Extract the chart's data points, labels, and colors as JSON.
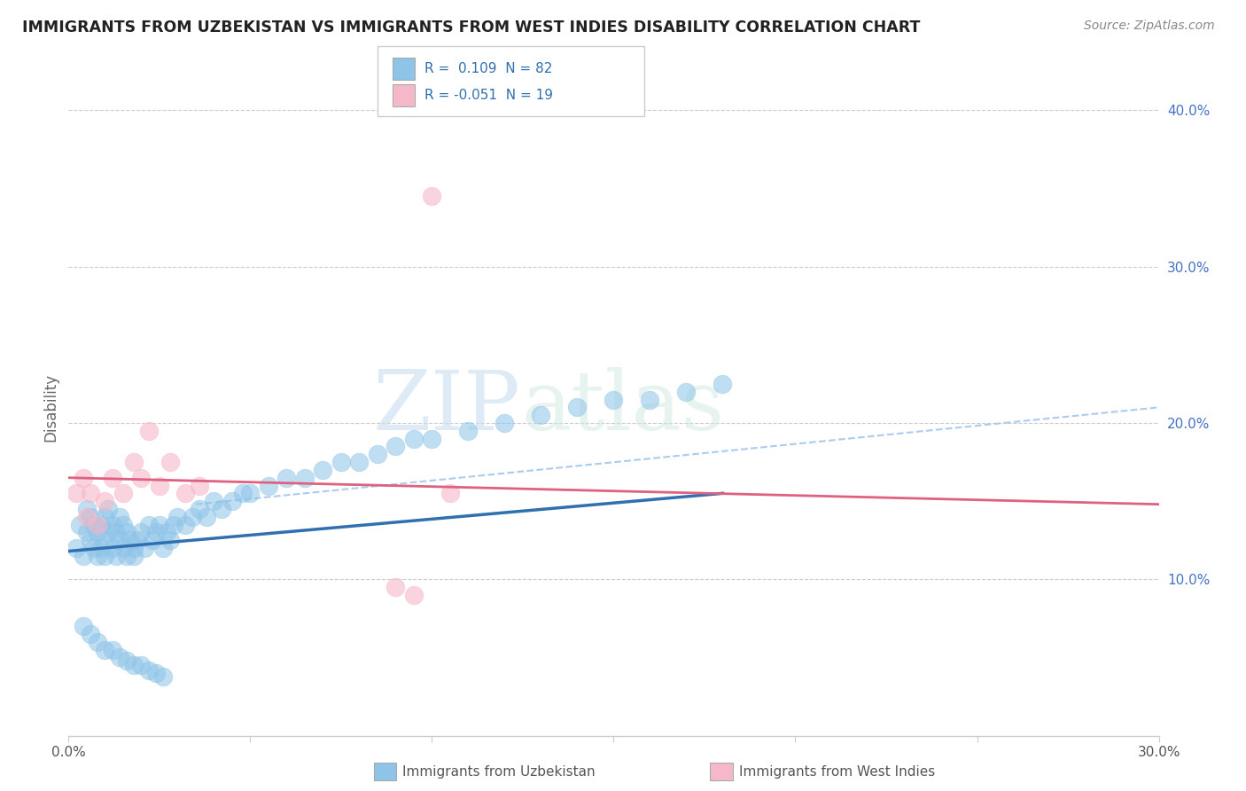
{
  "title": "IMMIGRANTS FROM UZBEKISTAN VS IMMIGRANTS FROM WEST INDIES DISABILITY CORRELATION CHART",
  "source": "Source: ZipAtlas.com",
  "ylabel": "Disability",
  "R1": 0.109,
  "N1": 82,
  "R2": -0.051,
  "N2": 19,
  "color_blue": "#8dc4e8",
  "color_pink": "#f5b8c8",
  "color_blue_line": "#3070b0",
  "color_pink_line": "#e06080",
  "color_dash": "#aaccee",
  "xlim": [
    0.0,
    0.3
  ],
  "ylim": [
    0.0,
    0.42
  ],
  "right_yticks": [
    0.1,
    0.2,
    0.3,
    0.4
  ],
  "right_yticklabels": [
    "10.0%",
    "20.0%",
    "30.0%",
    "40.0%"
  ],
  "legend_label_1": "Immigrants from Uzbekistan",
  "legend_label_2": "Immigrants from West Indies",
  "watermark_zip": "ZIP",
  "watermark_atlas": "atlas",
  "blue_dots_x": [
    0.002,
    0.003,
    0.004,
    0.005,
    0.005,
    0.006,
    0.006,
    0.007,
    0.007,
    0.008,
    0.008,
    0.009,
    0.009,
    0.01,
    0.01,
    0.01,
    0.011,
    0.011,
    0.012,
    0.012,
    0.013,
    0.013,
    0.014,
    0.014,
    0.015,
    0.015,
    0.016,
    0.016,
    0.017,
    0.018,
    0.018,
    0.019,
    0.02,
    0.021,
    0.022,
    0.023,
    0.024,
    0.025,
    0.026,
    0.027,
    0.028,
    0.029,
    0.03,
    0.032,
    0.034,
    0.036,
    0.038,
    0.04,
    0.042,
    0.045,
    0.048,
    0.05,
    0.055,
    0.06,
    0.065,
    0.07,
    0.075,
    0.08,
    0.085,
    0.09,
    0.095,
    0.1,
    0.11,
    0.12,
    0.13,
    0.14,
    0.15,
    0.16,
    0.17,
    0.18,
    0.004,
    0.006,
    0.008,
    0.01,
    0.012,
    0.014,
    0.016,
    0.018,
    0.02,
    0.022,
    0.024,
    0.026
  ],
  "blue_dots_y": [
    0.12,
    0.135,
    0.115,
    0.13,
    0.145,
    0.125,
    0.14,
    0.12,
    0.135,
    0.115,
    0.13,
    0.12,
    0.135,
    0.115,
    0.125,
    0.14,
    0.13,
    0.145,
    0.12,
    0.135,
    0.115,
    0.13,
    0.125,
    0.14,
    0.12,
    0.135,
    0.115,
    0.13,
    0.125,
    0.12,
    0.115,
    0.125,
    0.13,
    0.12,
    0.135,
    0.125,
    0.13,
    0.135,
    0.12,
    0.13,
    0.125,
    0.135,
    0.14,
    0.135,
    0.14,
    0.145,
    0.14,
    0.15,
    0.145,
    0.15,
    0.155,
    0.155,
    0.16,
    0.165,
    0.165,
    0.17,
    0.175,
    0.175,
    0.18,
    0.185,
    0.19,
    0.19,
    0.195,
    0.2,
    0.205,
    0.21,
    0.215,
    0.215,
    0.22,
    0.225,
    0.07,
    0.065,
    0.06,
    0.055,
    0.055,
    0.05,
    0.048,
    0.045,
    0.045,
    0.042,
    0.04,
    0.038
  ],
  "pink_dots_x": [
    0.002,
    0.004,
    0.005,
    0.006,
    0.008,
    0.01,
    0.012,
    0.015,
    0.018,
    0.02,
    0.022,
    0.025,
    0.028,
    0.032,
    0.036,
    0.09,
    0.095,
    0.1,
    0.105
  ],
  "pink_dots_y": [
    0.155,
    0.165,
    0.14,
    0.155,
    0.135,
    0.15,
    0.165,
    0.155,
    0.175,
    0.165,
    0.195,
    0.16,
    0.175,
    0.155,
    0.16,
    0.095,
    0.09,
    0.345,
    0.155
  ],
  "blue_line_x0": 0.0,
  "blue_line_x1": 0.18,
  "blue_line_y0": 0.118,
  "blue_line_y1": 0.155,
  "pink_line_x0": 0.0,
  "pink_line_x1": 0.3,
  "pink_line_y0": 0.165,
  "pink_line_y1": 0.148,
  "dash_line_x0": 0.035,
  "dash_line_x1": 0.3,
  "dash_line_y0": 0.148,
  "dash_line_y1": 0.21
}
